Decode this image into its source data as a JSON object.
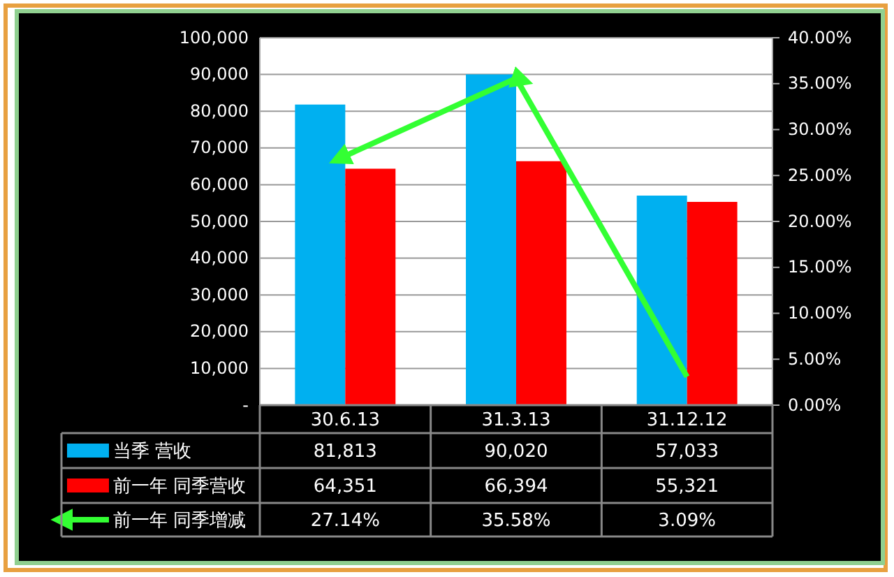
{
  "chart_data": {
    "type": "bar",
    "categories": [
      "30.6.13",
      "31.3.13",
      "31.12.12"
    ],
    "series": [
      {
        "name": "当季 营收",
        "color": "#00b0f0",
        "values": [
          81813,
          90020,
          57033
        ],
        "value_labels": [
          "81,813",
          "90,020",
          "57,033"
        ]
      },
      {
        "name": "前一年 同季营收",
        "color": "#ff0000",
        "values": [
          64351,
          66394,
          55321
        ],
        "value_labels": [
          "64,351",
          "66,394",
          "55,321"
        ]
      },
      {
        "name": "前一年 同季增减",
        "type": "line",
        "axis": "y2",
        "color": "#33ff33",
        "values": [
          27.14,
          35.58,
          3.09
        ],
        "value_labels": [
          "27.14%",
          "35.58%",
          "3.09%"
        ]
      }
    ],
    "ylim": [
      0,
      100000
    ],
    "yticks": [
      {
        "value": 0,
        "label": "-"
      },
      {
        "value": 10000,
        "label": "10,000"
      },
      {
        "value": 20000,
        "label": "20,000"
      },
      {
        "value": 30000,
        "label": "30,000"
      },
      {
        "value": 40000,
        "label": "40,000"
      },
      {
        "value": 50000,
        "label": "50,000"
      },
      {
        "value": 60000,
        "label": "60,000"
      },
      {
        "value": 70000,
        "label": "70,000"
      },
      {
        "value": 80000,
        "label": "80,000"
      },
      {
        "value": 90000,
        "label": "90,000"
      },
      {
        "value": 100000,
        "label": "100,000"
      }
    ],
    "y2lim": [
      0,
      40
    ],
    "y2ticks": [
      {
        "value": 0,
        "label": "0.00%"
      },
      {
        "value": 5,
        "label": "5.00%"
      },
      {
        "value": 10,
        "label": "10.00%"
      },
      {
        "value": 15,
        "label": "15.00%"
      },
      {
        "value": 20,
        "label": "20.00%"
      },
      {
        "value": 25,
        "label": "25.00%"
      },
      {
        "value": 30,
        "label": "30.00%"
      },
      {
        "value": 35,
        "label": "35.00%"
      },
      {
        "value": 40,
        "label": "40.00%"
      }
    ],
    "grid": "y",
    "legend": "bottom left"
  }
}
